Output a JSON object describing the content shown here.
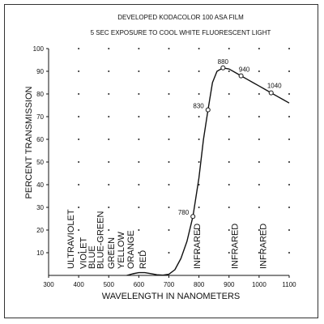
{
  "chart_data": {
    "type": "line",
    "title": "DEVELOPED KODACOLOR 100 ASA FILM",
    "subtitle": "5 SEC EXPOSURE TO COOL WHITE FLUORESCENT LIGHT",
    "xlabel": "WAVELENGTH IN NANOMETERS",
    "ylabel": "PERCENT TRANSMISSION",
    "xlim": [
      300,
      1100
    ],
    "ylim": [
      0,
      100
    ],
    "x_ticks": [
      300,
      400,
      500,
      600,
      700,
      800,
      900,
      1000,
      1100
    ],
    "y_ticks": [
      0,
      10,
      20,
      30,
      40,
      50,
      60,
      70,
      80,
      90,
      100
    ],
    "grid": "dots",
    "series": [
      {
        "x": [
          560,
          580,
          600,
          620,
          640,
          660,
          680,
          700,
          720,
          740,
          760,
          780,
          800,
          815,
          830,
          845,
          860,
          880,
          900,
          920,
          940,
          960,
          980,
          1000,
          1020,
          1040,
          1060,
          1080,
          1100
        ],
        "y": [
          0,
          0.7,
          1.2,
          1.2,
          0.8,
          0.3,
          0.1,
          0.5,
          2.5,
          7.5,
          15,
          26,
          43,
          60,
          73,
          85,
          90,
          91.5,
          91,
          89.5,
          88,
          86.5,
          85,
          83.5,
          82,
          80.5,
          79,
          77.5,
          76
        ]
      }
    ],
    "annotated_points": [
      {
        "label": "780",
        "x": 780,
        "y": 26
      },
      {
        "label": "830",
        "x": 830,
        "y": 73
      },
      {
        "label": "880",
        "x": 880,
        "y": 91.5
      },
      {
        "label": "940",
        "x": 940,
        "y": 88
      },
      {
        "label": "1040",
        "x": 1040,
        "y": 80.5
      }
    ],
    "regions": [
      {
        "label": "ULTRAVIOLET",
        "x": 370
      },
      {
        "label": "VIOLET",
        "x": 412
      },
      {
        "label": "BLUE",
        "x": 440
      },
      {
        "label": "BLUE-GREEN",
        "x": 468
      },
      {
        "label": "GREEN",
        "x": 505
      },
      {
        "label": "YELLOW",
        "x": 537
      },
      {
        "label": "ORANGE",
        "x": 570
      },
      {
        "label": "RED",
        "x": 610
      },
      {
        "label": "INFRARED",
        "x": 790
      },
      {
        "label": "INFRARED",
        "x": 915
      },
      {
        "label": "INFRARED",
        "x": 1010
      }
    ]
  }
}
